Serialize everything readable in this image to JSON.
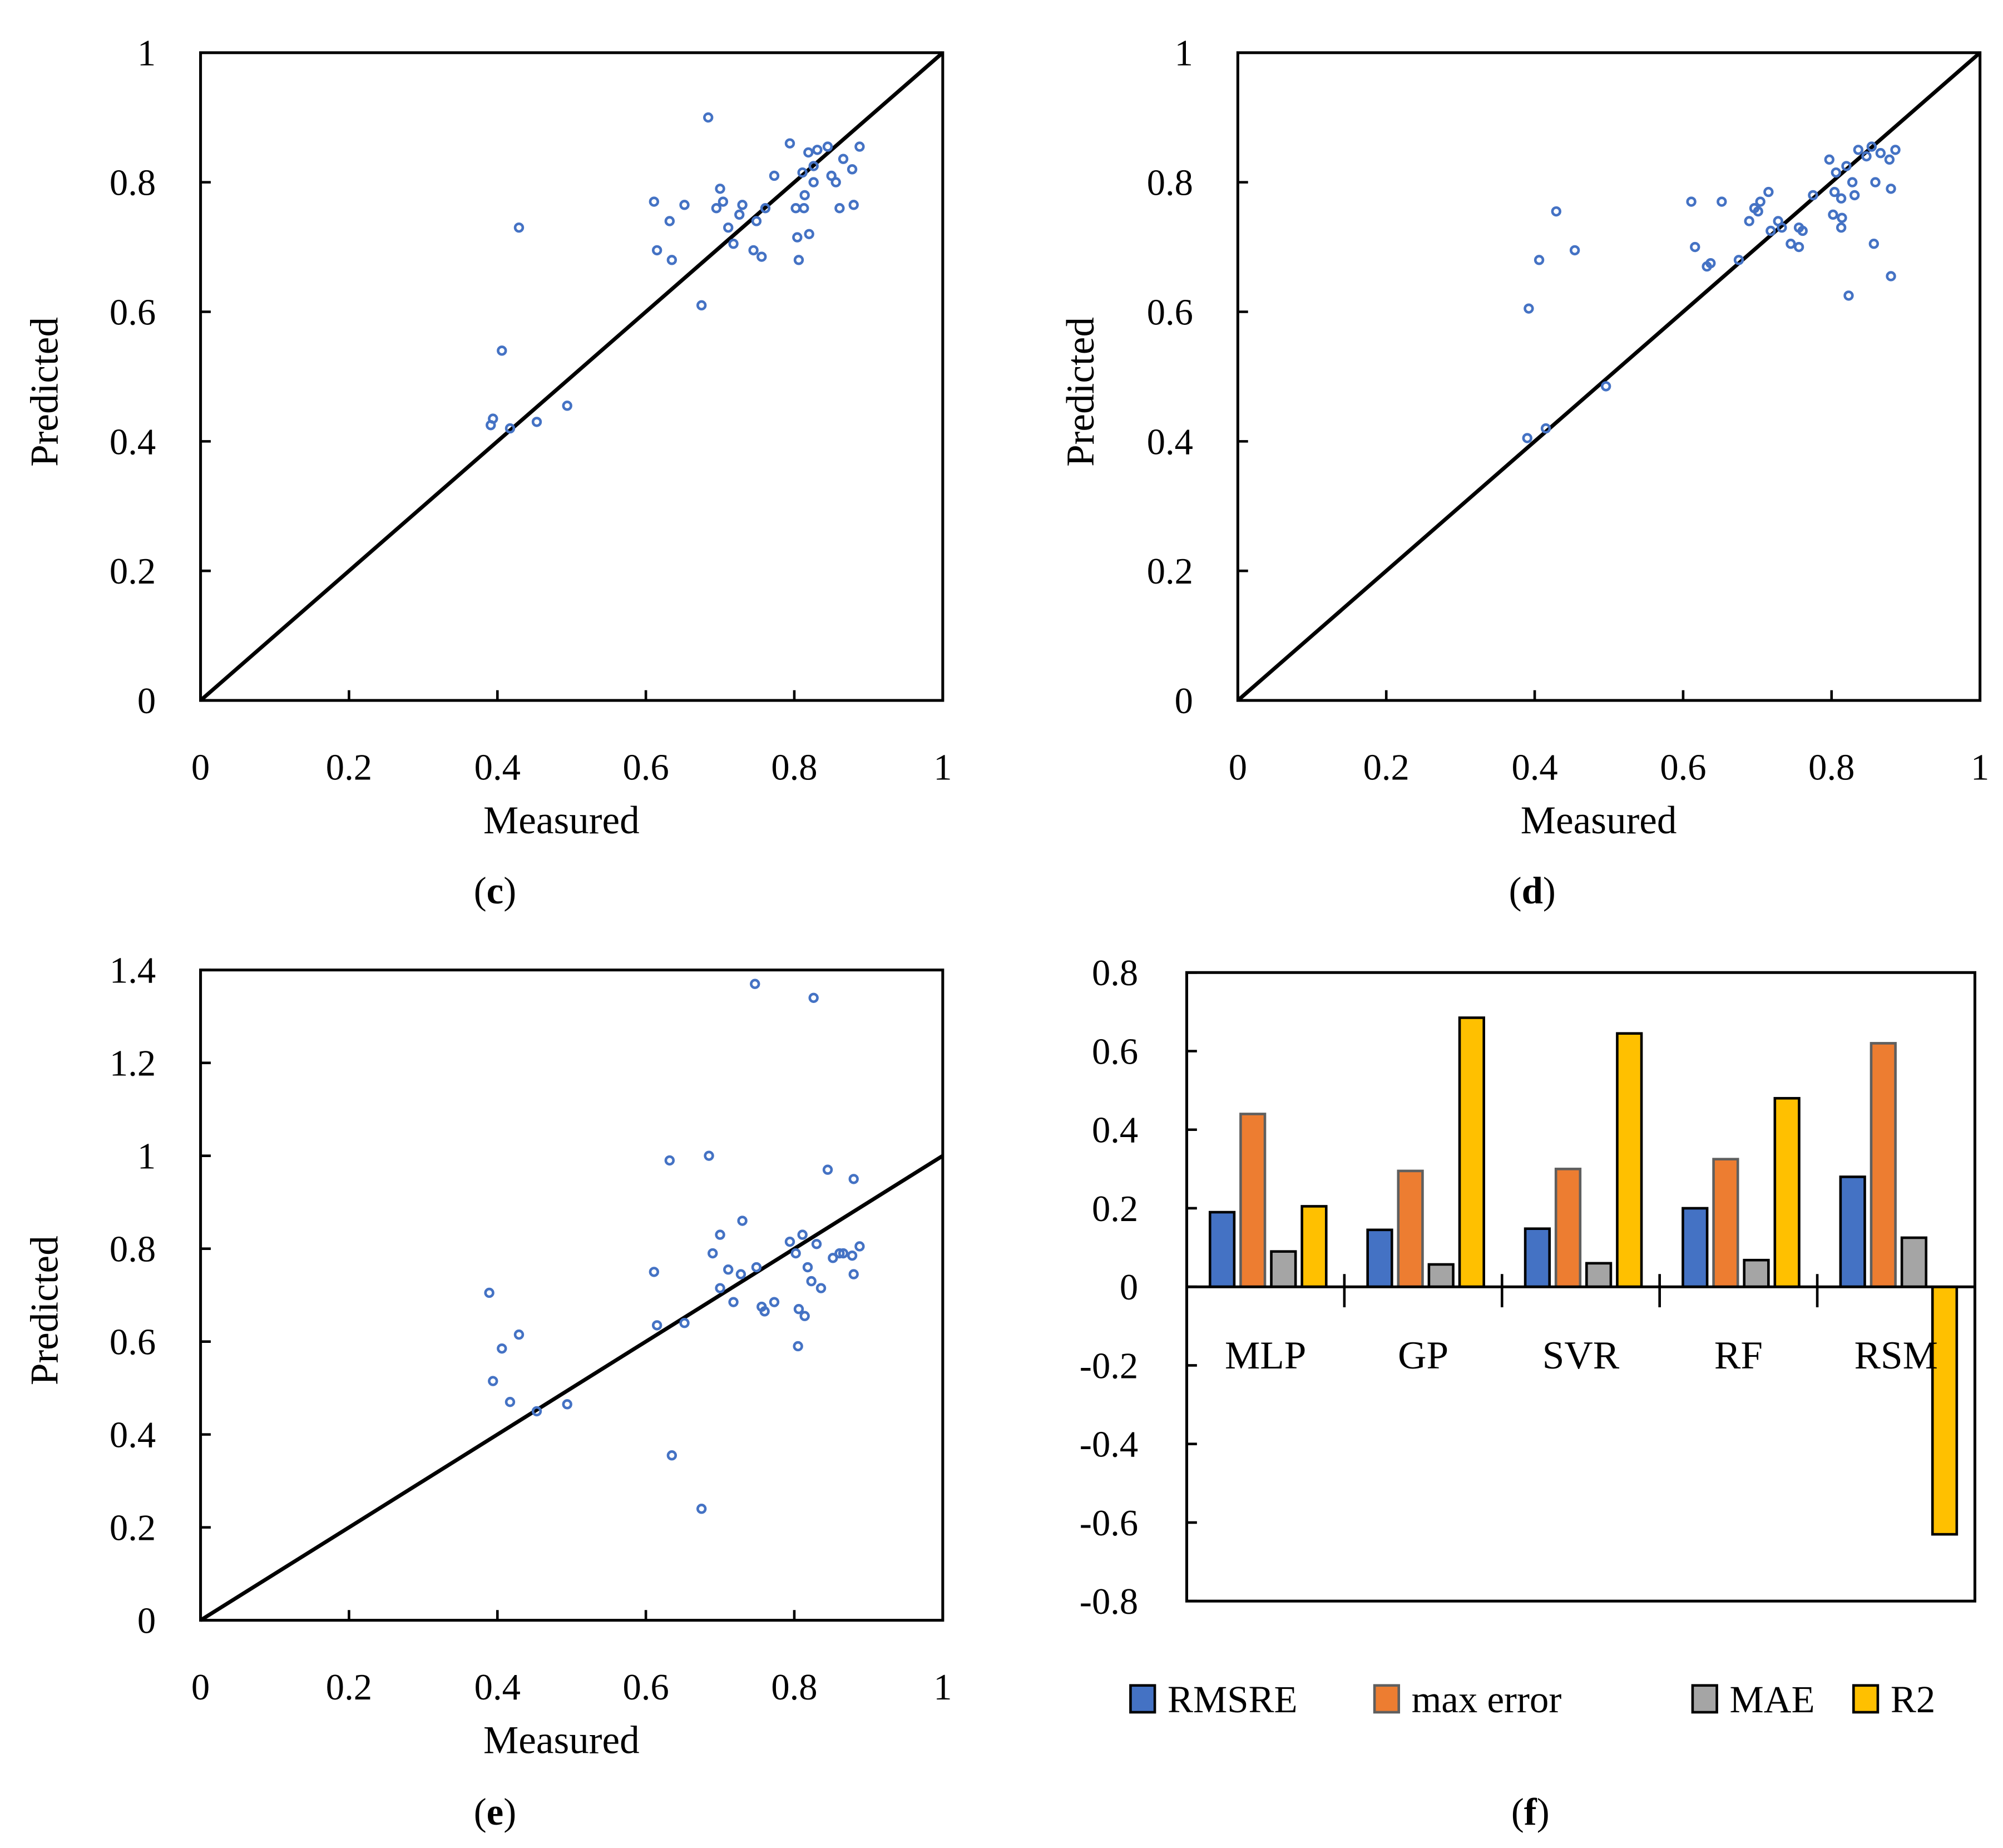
{
  "chart_data": [
    {
      "panel": "c",
      "type": "scatter",
      "caption": {
        "open": "(",
        "letter": "c",
        "close": ")"
      },
      "xlabel": "Measured",
      "ylabel": "Predicted",
      "xlim": [
        0,
        1
      ],
      "ylim": [
        0,
        1
      ],
      "xticks": [
        "0",
        "0.2",
        "0.4",
        "0.6",
        "0.8",
        "1"
      ],
      "yticks": [
        "0",
        "0.2",
        "0.4",
        "0.6",
        "0.8",
        "1"
      ],
      "identity_line": true,
      "marker_color": "#4472C4",
      "points": [
        [
          0.684,
          0.9
        ],
        [
          0.794,
          0.86
        ],
        [
          0.845,
          0.855
        ],
        [
          0.888,
          0.855
        ],
        [
          0.831,
          0.85
        ],
        [
          0.819,
          0.846
        ],
        [
          0.866,
          0.836
        ],
        [
          0.773,
          0.81
        ],
        [
          0.811,
          0.815
        ],
        [
          0.878,
          0.82
        ],
        [
          0.826,
          0.825
        ],
        [
          0.85,
          0.81
        ],
        [
          0.856,
          0.8
        ],
        [
          0.826,
          0.8
        ],
        [
          0.7,
          0.79
        ],
        [
          0.814,
          0.78
        ],
        [
          0.611,
          0.77
        ],
        [
          0.652,
          0.765
        ],
        [
          0.73,
          0.765
        ],
        [
          0.695,
          0.76
        ],
        [
          0.704,
          0.77
        ],
        [
          0.761,
          0.76
        ],
        [
          0.802,
          0.76
        ],
        [
          0.813,
          0.76
        ],
        [
          0.861,
          0.76
        ],
        [
          0.88,
          0.765
        ],
        [
          0.726,
          0.75
        ],
        [
          0.749,
          0.74
        ],
        [
          0.632,
          0.74
        ],
        [
          0.711,
          0.73
        ],
        [
          0.429,
          0.73
        ],
        [
          0.82,
          0.72
        ],
        [
          0.804,
          0.715
        ],
        [
          0.718,
          0.705
        ],
        [
          0.615,
          0.695
        ],
        [
          0.745,
          0.695
        ],
        [
          0.756,
          0.685
        ],
        [
          0.635,
          0.68
        ],
        [
          0.806,
          0.68
        ],
        [
          0.675,
          0.61
        ],
        [
          0.406,
          0.54
        ],
        [
          0.494,
          0.455
        ],
        [
          0.394,
          0.435
        ],
        [
          0.453,
          0.43
        ],
        [
          0.391,
          0.425
        ],
        [
          0.417,
          0.42
        ]
      ]
    },
    {
      "panel": "d",
      "type": "scatter",
      "caption": {
        "open": "(",
        "letter": "d",
        "close": ")"
      },
      "xlabel": "Measured",
      "ylabel": "Predicted",
      "xlim": [
        0,
        1
      ],
      "ylim": [
        0,
        1
      ],
      "xticks": [
        "0",
        "0.2",
        "0.4",
        "0.6",
        "0.8",
        "1"
      ],
      "yticks": [
        "0",
        "0.2",
        "0.4",
        "0.6",
        "0.8",
        "1"
      ],
      "identity_line": true,
      "marker_color": "#4472C4",
      "points": [
        [
          0.429,
          0.755
        ],
        [
          0.406,
          0.68
        ],
        [
          0.454,
          0.695
        ],
        [
          0.392,
          0.605
        ],
        [
          0.39,
          0.405
        ],
        [
          0.415,
          0.42
        ],
        [
          0.496,
          0.485
        ],
        [
          0.611,
          0.77
        ],
        [
          0.652,
          0.77
        ],
        [
          0.616,
          0.7
        ],
        [
          0.632,
          0.67
        ],
        [
          0.637,
          0.675
        ],
        [
          0.675,
          0.68
        ],
        [
          0.689,
          0.74
        ],
        [
          0.696,
          0.76
        ],
        [
          0.704,
          0.77
        ],
        [
          0.701,
          0.755
        ],
        [
          0.715,
          0.785
        ],
        [
          0.718,
          0.725
        ],
        [
          0.728,
          0.74
        ],
        [
          0.733,
          0.73
        ],
        [
          0.745,
          0.705
        ],
        [
          0.756,
          0.73
        ],
        [
          0.756,
          0.7
        ],
        [
          0.761,
          0.725
        ],
        [
          0.775,
          0.78
        ],
        [
          0.797,
          0.835
        ],
        [
          0.804,
          0.785
        ],
        [
          0.806,
          0.815
        ],
        [
          0.802,
          0.75
        ],
        [
          0.813,
          0.775
        ],
        [
          0.813,
          0.73
        ],
        [
          0.814,
          0.745
        ],
        [
          0.82,
          0.825
        ],
        [
          0.823,
          0.625
        ],
        [
          0.828,
          0.8
        ],
        [
          0.836,
          0.85
        ],
        [
          0.831,
          0.78
        ],
        [
          0.847,
          0.84
        ],
        [
          0.854,
          0.855
        ],
        [
          0.857,
          0.705
        ],
        [
          0.859,
          0.8
        ],
        [
          0.866,
          0.845
        ],
        [
          0.878,
          0.835
        ],
        [
          0.88,
          0.655
        ],
        [
          0.88,
          0.79
        ],
        [
          0.886,
          0.85
        ]
      ]
    },
    {
      "panel": "e",
      "type": "scatter",
      "caption": {
        "open": "(",
        "letter": "e",
        "close": ")"
      },
      "xlabel": "Measured",
      "ylabel": "Predicted",
      "xlim": [
        0,
        1
      ],
      "ylim": [
        0,
        1.4
      ],
      "xticks": [
        "0",
        "0.2",
        "0.4",
        "0.6",
        "0.8",
        "1"
      ],
      "yticks": [
        "0",
        "0.2",
        "0.4",
        "0.6",
        "0.8",
        "1",
        "1.2",
        "1.4"
      ],
      "identity_line": true,
      "marker_color": "#4472C4",
      "points": [
        [
          0.747,
          1.37
        ],
        [
          0.826,
          1.34
        ],
        [
          0.685,
          1.0
        ],
        [
          0.632,
          0.99
        ],
        [
          0.845,
          0.97
        ],
        [
          0.88,
          0.95
        ],
        [
          0.73,
          0.86
        ],
        [
          0.7,
          0.83
        ],
        [
          0.611,
          0.75
        ],
        [
          0.811,
          0.83
        ],
        [
          0.794,
          0.815
        ],
        [
          0.83,
          0.81
        ],
        [
          0.888,
          0.805
        ],
        [
          0.69,
          0.79
        ],
        [
          0.802,
          0.79
        ],
        [
          0.852,
          0.78
        ],
        [
          0.861,
          0.79
        ],
        [
          0.866,
          0.79
        ],
        [
          0.878,
          0.785
        ],
        [
          0.818,
          0.76
        ],
        [
          0.749,
          0.76
        ],
        [
          0.711,
          0.755
        ],
        [
          0.728,
          0.745
        ],
        [
          0.823,
          0.73
        ],
        [
          0.773,
          0.685
        ],
        [
          0.718,
          0.685
        ],
        [
          0.756,
          0.675
        ],
        [
          0.76,
          0.665
        ],
        [
          0.806,
          0.67
        ],
        [
          0.814,
          0.655
        ],
        [
          0.836,
          0.715
        ],
        [
          0.7,
          0.715
        ],
        [
          0.88,
          0.745
        ],
        [
          0.652,
          0.64
        ],
        [
          0.615,
          0.635
        ],
        [
          0.805,
          0.59
        ],
        [
          0.389,
          0.705
        ],
        [
          0.429,
          0.615
        ],
        [
          0.406,
          0.585
        ],
        [
          0.394,
          0.515
        ],
        [
          0.417,
          0.47
        ],
        [
          0.453,
          0.45
        ],
        [
          0.494,
          0.465
        ],
        [
          0.635,
          0.355
        ],
        [
          0.675,
          0.24
        ]
      ]
    },
    {
      "panel": "f",
      "type": "bar",
      "caption": {
        "open": "(",
        "letter": "f",
        "close": ")"
      },
      "categories": [
        "MLP",
        "GP",
        "SVR",
        "RF",
        "RSM"
      ],
      "ylim": [
        -0.8,
        0.8
      ],
      "yticks": [
        "-0.8",
        "-0.6",
        "-0.4",
        "-0.2",
        "0",
        "0.2",
        "0.4",
        "0.6",
        "0.8"
      ],
      "legend_position": "bottom",
      "series": [
        {
          "name": "RMSRE",
          "color": "#4472C4",
          "stroke": "#000000",
          "values": [
            0.19,
            0.145,
            0.148,
            0.2,
            0.28
          ]
        },
        {
          "name": "max error",
          "color": "#ED7D31",
          "stroke": "#5F5F5F",
          "values": [
            0.44,
            0.295,
            0.3,
            0.325,
            0.62
          ]
        },
        {
          "name": "MAE",
          "color": "#A5A5A5",
          "stroke": "#000000",
          "values": [
            0.09,
            0.057,
            0.06,
            0.068,
            0.125
          ]
        },
        {
          "name": "R2",
          "color": "#FFC000",
          "stroke": "#000000",
          "values": [
            0.205,
            0.685,
            0.645,
            0.48,
            -0.63
          ]
        }
      ]
    }
  ]
}
